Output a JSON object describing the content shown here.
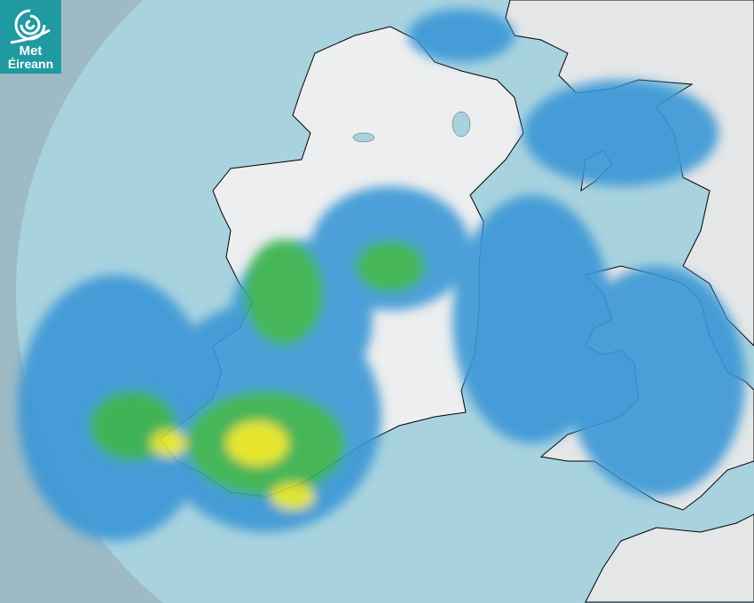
{
  "logo": {
    "line1": "Met",
    "line2": "Éireann"
  },
  "colors": {
    "outside_range": "#9dbac5",
    "sea": "#a9d2df",
    "land": "#eceeef",
    "rain_light": "#3a97d6",
    "rain_moderate": "#34b04a",
    "rain_heavy": "#e6e61e",
    "brand": "#1f9aa0"
  }
}
